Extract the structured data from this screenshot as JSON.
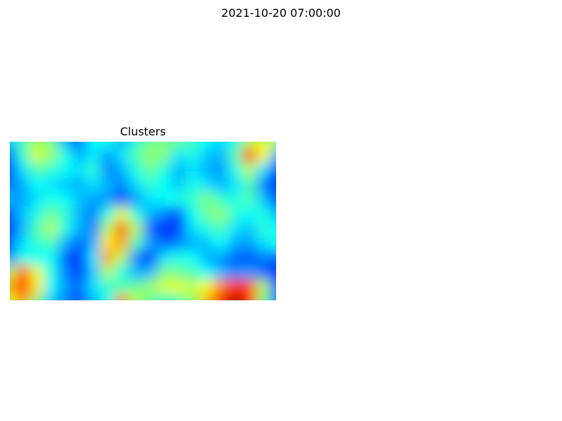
{
  "figure": {
    "suptitle": "2021-10-20 07:00:00"
  },
  "chart_data": {
    "type": "heatmap",
    "title": "Clusters",
    "colormap": "jet",
    "value_range": [
      0,
      1
    ],
    "grid": false,
    "axes_visible": false,
    "colors": {
      "low": "#00008f",
      "mid": "#80ff80",
      "high": "#800000"
    },
    "rows": 12,
    "cols": 20,
    "values": [
      [
        0.32,
        0.45,
        0.55,
        0.5,
        0.3,
        0.2,
        0.38,
        0.4,
        0.3,
        0.42,
        0.48,
        0.5,
        0.48,
        0.44,
        0.38,
        0.34,
        0.4,
        0.55,
        0.6,
        0.55
      ],
      [
        0.2,
        0.42,
        0.58,
        0.52,
        0.4,
        0.3,
        0.36,
        0.28,
        0.35,
        0.45,
        0.52,
        0.5,
        0.35,
        0.4,
        0.32,
        0.3,
        0.45,
        0.82,
        0.62,
        0.3
      ],
      [
        0.15,
        0.35,
        0.45,
        0.42,
        0.38,
        0.35,
        0.42,
        0.25,
        0.3,
        0.4,
        0.48,
        0.4,
        0.3,
        0.35,
        0.3,
        0.28,
        0.4,
        0.55,
        0.35,
        0.15
      ],
      [
        0.22,
        0.3,
        0.38,
        0.35,
        0.32,
        0.3,
        0.35,
        0.3,
        0.25,
        0.35,
        0.42,
        0.38,
        0.32,
        0.4,
        0.35,
        0.3,
        0.35,
        0.45,
        0.25,
        0.12
      ],
      [
        0.3,
        0.28,
        0.35,
        0.4,
        0.38,
        0.32,
        0.28,
        0.28,
        0.2,
        0.28,
        0.35,
        0.38,
        0.4,
        0.42,
        0.5,
        0.42,
        0.4,
        0.45,
        0.32,
        0.18
      ],
      [
        0.18,
        0.32,
        0.4,
        0.48,
        0.42,
        0.3,
        0.25,
        0.4,
        0.6,
        0.4,
        0.3,
        0.25,
        0.2,
        0.38,
        0.48,
        0.52,
        0.42,
        0.38,
        0.4,
        0.3
      ],
      [
        0.12,
        0.3,
        0.45,
        0.55,
        0.4,
        0.3,
        0.25,
        0.55,
        0.78,
        0.55,
        0.22,
        0.15,
        0.18,
        0.35,
        0.4,
        0.45,
        0.35,
        0.32,
        0.42,
        0.38
      ],
      [
        0.15,
        0.35,
        0.42,
        0.45,
        0.3,
        0.22,
        0.3,
        0.65,
        0.72,
        0.45,
        0.28,
        0.22,
        0.25,
        0.3,
        0.32,
        0.38,
        0.3,
        0.28,
        0.35,
        0.4
      ],
      [
        0.25,
        0.4,
        0.38,
        0.38,
        0.22,
        0.15,
        0.35,
        0.72,
        0.55,
        0.25,
        0.15,
        0.35,
        0.4,
        0.38,
        0.3,
        0.28,
        0.22,
        0.2,
        0.25,
        0.22
      ],
      [
        0.55,
        0.78,
        0.6,
        0.4,
        0.25,
        0.18,
        0.32,
        0.55,
        0.4,
        0.3,
        0.3,
        0.5,
        0.48,
        0.45,
        0.38,
        0.3,
        0.25,
        0.28,
        0.22,
        0.15
      ],
      [
        0.7,
        0.85,
        0.65,
        0.38,
        0.28,
        0.22,
        0.35,
        0.42,
        0.45,
        0.48,
        0.52,
        0.58,
        0.6,
        0.55,
        0.62,
        0.75,
        0.85,
        0.8,
        0.55,
        0.2
      ],
      [
        0.6,
        0.72,
        0.5,
        0.32,
        0.25,
        0.2,
        0.3,
        0.4,
        0.75,
        0.55,
        0.48,
        0.42,
        0.45,
        0.52,
        0.7,
        0.88,
        0.95,
        0.85,
        0.5,
        0.22
      ]
    ]
  }
}
